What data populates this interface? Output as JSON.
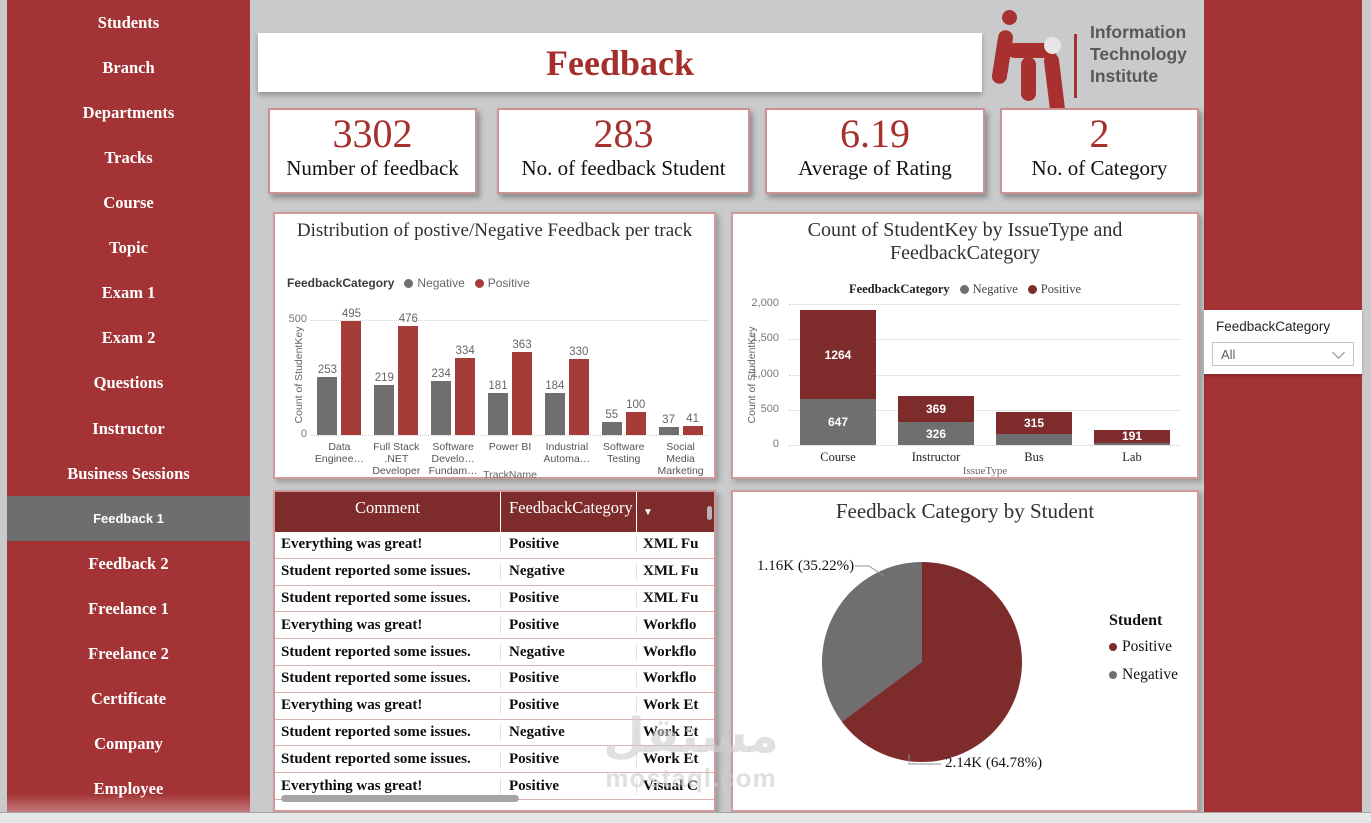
{
  "colors": {
    "page_bg": "#c9cacb",
    "sidebar_red": "#a43335",
    "bright_red": "#a6302e",
    "dark_red": "#7e2b2c",
    "series_gray": "#6f6f6f",
    "card_border": "#d09a9b",
    "selected_gray": "#6e6e6e"
  },
  "sidebar": {
    "items": [
      {
        "label": "Students",
        "active": false
      },
      {
        "label": "Branch",
        "active": false
      },
      {
        "label": "Departments",
        "active": false
      },
      {
        "label": "Tracks",
        "active": false
      },
      {
        "label": "Course",
        "active": false
      },
      {
        "label": "Topic",
        "active": false
      },
      {
        "label": "Exam 1",
        "active": false
      },
      {
        "label": "Exam 2",
        "active": false
      },
      {
        "label": "Questions",
        "active": false
      },
      {
        "label": "Instructor",
        "active": false
      },
      {
        "label": "Business Sessions",
        "active": false
      },
      {
        "label": "Feedback 1",
        "active": true
      },
      {
        "label": "Feedback 2",
        "active": false
      },
      {
        "label": "Freelance 1",
        "active": false
      },
      {
        "label": "Freelance 2",
        "active": false
      },
      {
        "label": "Certificate",
        "active": false
      },
      {
        "label": "Company",
        "active": false
      },
      {
        "label": "Employee",
        "active": false
      }
    ]
  },
  "header": {
    "title": "Feedback"
  },
  "logo": {
    "line1": "Information",
    "line2": "Technology",
    "line3": "Institute"
  },
  "kpis": [
    {
      "value": "3302",
      "label": "Number of feedback"
    },
    {
      "value": "283",
      "label": "No. of feedback Student"
    },
    {
      "value": "6.19",
      "label": "Average of Rating"
    },
    {
      "value": "2",
      "label": "No. of Category"
    }
  ],
  "filter": {
    "label": "FeedbackCategory",
    "value": "All"
  },
  "chart_data": [
    {
      "type": "bar",
      "title": "Distribution of postive/Negative Feedback per track",
      "legend_title": "FeedbackCategory",
      "legend_position": "top-left",
      "categories": [
        "Data Enginee…",
        "Full Stack .NET Developer",
        "Software Develo… Fundam…",
        "Power BI",
        "Industrial Automa…",
        "Software Testing",
        "Social Media Marketing"
      ],
      "series": [
        {
          "name": "Negative",
          "color": "#6f6f6f",
          "values": [
            253,
            219,
            234,
            181,
            184,
            55,
            37
          ]
        },
        {
          "name": "Positive",
          "color": "#a63c38",
          "values": [
            495,
            476,
            334,
            363,
            330,
            100,
            41
          ]
        }
      ],
      "xlabel": "TrackName",
      "ylabel": "Count of StudentKey",
      "ylim": [
        0,
        500
      ],
      "ytick_labels": [
        "0",
        "500"
      ],
      "grid": "dotted"
    },
    {
      "type": "bar",
      "stacked": true,
      "title": "Count of StudentKey by IssueType and FeedbackCategory",
      "legend_title": "FeedbackCategory",
      "legend_position": "top-center",
      "categories": [
        "Course",
        "Instructor",
        "Bus",
        "Lab"
      ],
      "series": [
        {
          "name": "Negative",
          "color": "#6f6f6f",
          "values": [
            647,
            326,
            160,
            28
          ],
          "labels": [
            "647",
            "326",
            "",
            ""
          ]
        },
        {
          "name": "Positive",
          "color": "#7e2b2c",
          "values": [
            1264,
            369,
            315,
            191
          ],
          "labels": [
            "1264",
            "369",
            "315",
            "191"
          ]
        }
      ],
      "xlabel": "IssueType",
      "ylabel": "Count of StudentKey",
      "ylim": [
        0,
        2000
      ],
      "ytick_labels": [
        "0",
        "500",
        "1,000",
        "1,500",
        "2,000"
      ],
      "grid": "dotted"
    },
    {
      "type": "pie",
      "title": "Feedback Category by Student",
      "legend_title": "Student",
      "legend_position": "right",
      "start_angle_deg": 0,
      "slices": [
        {
          "name": "Positive",
          "value": 2140,
          "pct": 64.78,
          "label": "2.14K (64.78%)",
          "color": "#7e2b2c"
        },
        {
          "name": "Negative",
          "value": 1160,
          "pct": 35.22,
          "label": "1.16K (35.22%)",
          "color": "#6f6f6f"
        }
      ]
    }
  ],
  "table": {
    "columns": [
      "Comment",
      "FeedbackCategory",
      ""
    ],
    "sort_icon": "▼",
    "rows": [
      [
        "Everything was great!",
        "Positive",
        "XML Fu"
      ],
      [
        "Student reported some issues.",
        "Negative",
        "XML Fu"
      ],
      [
        "Student reported some issues.",
        "Positive",
        "XML Fu"
      ],
      [
        "Everything was great!",
        "Positive",
        "Workflo"
      ],
      [
        "Student reported some issues.",
        "Negative",
        "Workflo"
      ],
      [
        "Student reported some issues.",
        "Positive",
        "Workflo"
      ],
      [
        "Everything was great!",
        "Positive",
        "Work Et"
      ],
      [
        "Student reported some issues.",
        "Negative",
        "Work Et"
      ],
      [
        "Student reported some issues.",
        "Positive",
        "Work Et"
      ],
      [
        "Everything was great!",
        "Positive",
        "Visual C"
      ]
    ]
  },
  "watermark": {
    "line1": "مستقل",
    "line2": "mostaql.com"
  }
}
